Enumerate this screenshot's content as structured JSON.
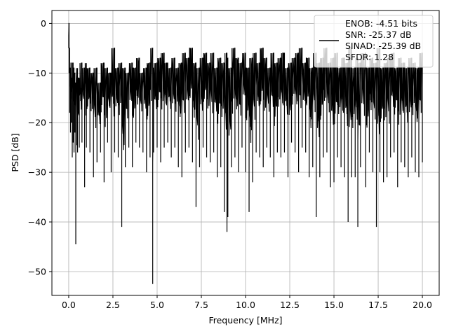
{
  "chart_data": {
    "type": "line",
    "xlabel": "Frequency [MHz]",
    "ylabel": "PSD [dB]",
    "xlim": [
      -0.95,
      20.95
    ],
    "ylim": [
      -54.8,
      2.6
    ],
    "xticks": [
      0.0,
      2.5,
      5.0,
      7.5,
      10.0,
      12.5,
      15.0,
      17.5,
      20.0
    ],
    "xtick_labels": [
      "0.0",
      "2.5",
      "5.0",
      "7.5",
      "10.0",
      "12.5",
      "15.0",
      "17.5",
      "20.0"
    ],
    "yticks": [
      0,
      -10,
      -20,
      -30,
      -40,
      -50
    ],
    "ytick_labels": [
      "0",
      "−10",
      "−20",
      "−30",
      "−40",
      "−50"
    ],
    "grid": true,
    "legend_position": "top-right",
    "legend": {
      "entries": [
        "ENOB: -4.51 bits",
        "SNR: -25.37 dB",
        "SINAD: -25.39 dB",
        "SFDR: 1.28"
      ]
    },
    "series": [
      {
        "color": "#000000",
        "x": [
          0.0,
          0.02,
          0.05,
          0.1,
          0.15,
          0.2,
          0.25,
          0.3,
          0.35,
          0.4,
          0.5,
          0.6,
          0.75,
          0.9,
          1.0,
          1.2,
          1.4,
          1.6,
          1.8,
          2.0,
          2.2,
          2.4,
          2.6,
          2.8,
          3.0,
          3.2,
          3.4,
          3.6,
          3.8,
          4.0,
          4.2,
          4.4,
          4.6,
          4.75,
          4.8,
          5.0,
          5.2,
          5.4,
          5.6,
          5.8,
          6.0,
          6.2,
          6.4,
          6.6,
          6.8,
          7.0,
          7.2,
          7.4,
          7.6,
          7.8,
          8.0,
          8.2,
          8.4,
          8.6,
          8.8,
          8.95,
          9.0,
          9.2,
          9.4,
          9.6,
          9.8,
          10.0,
          10.2,
          10.4,
          10.6,
          10.8,
          11.0,
          11.2,
          11.4,
          11.6,
          11.8,
          12.0,
          12.2,
          12.4,
          12.6,
          12.8,
          13.0,
          13.2,
          13.4,
          13.6,
          13.8,
          14.0,
          14.2,
          14.4,
          14.6,
          14.8,
          15.0,
          15.2,
          15.4,
          15.6,
          15.8,
          16.0,
          16.2,
          16.35,
          16.5,
          16.8,
          17.0,
          17.2,
          17.4,
          17.6,
          17.8,
          18.0,
          18.2,
          18.4,
          18.6,
          18.8,
          19.0,
          19.2,
          19.4,
          19.6,
          19.8,
          20.0
        ],
        "lower": [
          -5,
          -10,
          -18,
          -22,
          -20,
          -27,
          -24,
          -26,
          -22,
          -44.5,
          -26,
          -25,
          -24,
          -33,
          -25,
          -26,
          -31,
          -28,
          -26,
          -32,
          -24,
          -30,
          -26,
          -27,
          -41,
          -29,
          -25,
          -29,
          -24,
          -25,
          -26,
          -30,
          -27,
          -52.5,
          -26,
          -25,
          -28,
          -25,
          -24,
          -27,
          -25,
          -29,
          -31,
          -26,
          -25,
          -28,
          -37,
          -29,
          -25,
          -27,
          -28,
          -26,
          -31,
          -29,
          -38,
          -42,
          -39,
          -29,
          -27,
          -30,
          -25,
          -30,
          -38,
          -32,
          -26,
          -27,
          -29,
          -25,
          -27,
          -31,
          -26,
          -27,
          -26,
          -31,
          -24,
          -26,
          -30,
          -25,
          -26,
          -31,
          -29,
          -39,
          -31,
          -27,
          -26,
          -33,
          -32,
          -27,
          -29,
          -31,
          -40,
          -31,
          -31,
          -41,
          -29,
          -33,
          -26,
          -30,
          -41,
          -30,
          -32,
          -31,
          -27,
          -26,
          -33,
          -28,
          -29,
          -31,
          -27,
          -30,
          -31,
          -28
        ],
        "upper": [
          0,
          -5,
          -9,
          -8,
          -11,
          -8,
          -9,
          -10,
          -12,
          -9,
          -11,
          -8,
          -9,
          -8,
          -9,
          -10,
          -9,
          -12,
          -8,
          -9,
          -10,
          -5,
          -9,
          -8,
          -9,
          -10,
          -8,
          -9,
          -7,
          -10,
          -9,
          -8,
          -5,
          -9,
          -8,
          -7,
          -6,
          -8,
          -9,
          -7,
          -9,
          -8,
          -6,
          -7,
          -5,
          -8,
          -9,
          -7,
          -6,
          -8,
          -6,
          -9,
          -7,
          -8,
          -6,
          -7,
          -9,
          -5,
          -7,
          -8,
          -6,
          -9,
          -7,
          -6,
          -8,
          -5,
          -7,
          -9,
          -6,
          -8,
          -7,
          -6,
          -9,
          -8,
          -7,
          -6,
          -5,
          -8,
          -7,
          -9,
          -6,
          -8,
          -7,
          -5,
          -8,
          -7,
          -6,
          -9,
          -7,
          -8,
          -5,
          -9,
          -7,
          -8,
          -6,
          -9,
          -7,
          -8,
          -5,
          -9,
          -8,
          -7,
          -6,
          -9,
          -7,
          -8,
          -9,
          -7,
          -8,
          -9,
          -6,
          -8
        ]
      }
    ]
  }
}
